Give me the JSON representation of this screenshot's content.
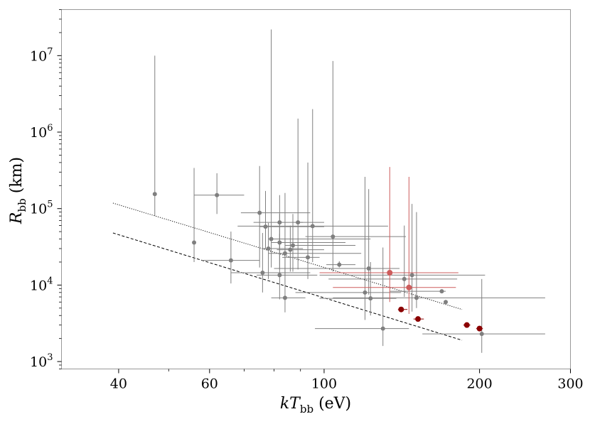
{
  "chart_data": {
    "type": "scatter",
    "title": "",
    "xlabel": {
      "main": "kT",
      "sub": "bb",
      "unit": " (eV)"
    },
    "ylabel": {
      "main": "R",
      "sub": "bb",
      "unit": " (km)"
    },
    "xscale": "log",
    "yscale": "log",
    "xlim": [
      31,
      300
    ],
    "ylim": [
      800,
      40000000
    ],
    "x_ticks": [
      {
        "value": 40,
        "label": "40"
      },
      {
        "value": 60,
        "label": "60"
      },
      {
        "value": 100,
        "label": "100"
      },
      {
        "value": 200,
        "label": "200"
      },
      {
        "value": 300,
        "label": "300"
      }
    ],
    "y_ticks": [
      {
        "value": 1000,
        "base": "10",
        "exp": "3"
      },
      {
        "value": 10000,
        "base": "10",
        "exp": "4"
      },
      {
        "value": 100000,
        "base": "10",
        "exp": "5"
      },
      {
        "value": 1000000,
        "base": "10",
        "exp": "6"
      },
      {
        "value": 10000000,
        "base": "10",
        "exp": "7"
      }
    ],
    "colors": {
      "gray": "#7f7f7f",
      "lightred": "#cd5c5c",
      "darkred": "#8b0000",
      "frame": "#999999",
      "line": "#000000"
    },
    "series": [
      {
        "name": "gray",
        "color": "#7f7f7f",
        "size": 3,
        "points": [
          {
            "x": 47,
            "y": 155000,
            "xlo": 47,
            "xhi": 47,
            "ylo": 80000,
            "yhi": 10000000
          },
          {
            "x": 62,
            "y": 150000,
            "xlo": 56,
            "xhi": 70,
            "ylo": 85000,
            "yhi": 290000
          },
          {
            "x": 56,
            "y": 36000,
            "xlo": 56,
            "xhi": 56,
            "ylo": 20000,
            "yhi": 340000
          },
          {
            "x": 66,
            "y": 21000,
            "xlo": 58,
            "xhi": 75,
            "ylo": 10500,
            "yhi": 50000
          },
          {
            "x": 75,
            "y": 88000,
            "xlo": 69,
            "xhi": 94,
            "ylo": 17000,
            "yhi": 360000
          },
          {
            "x": 77,
            "y": 58000,
            "xlo": 75,
            "xhi": 100,
            "ylo": 30000,
            "yhi": 170000
          },
          {
            "x": 79,
            "y": 40000,
            "xlo": 78,
            "xhi": 123,
            "ylo": 17000,
            "yhi": 22000000
          },
          {
            "x": 78,
            "y": 30000,
            "xlo": 76,
            "xhi": 91,
            "ylo": 12000,
            "yhi": 65000
          },
          {
            "x": 82,
            "y": 66000,
            "xlo": 73,
            "xhi": 100,
            "ylo": 30000,
            "yhi": 150000
          },
          {
            "x": 82,
            "y": 36000,
            "xlo": 79,
            "xhi": 110,
            "ylo": 16000,
            "yhi": 85000
          },
          {
            "x": 84,
            "y": 26000,
            "xlo": 78,
            "xhi": 118,
            "ylo": 13000,
            "yhi": 160000
          },
          {
            "x": 86,
            "y": 29000,
            "xlo": 81,
            "xhi": 100,
            "ylo": 15000,
            "yhi": 60000
          },
          {
            "x": 87,
            "y": 33000,
            "xlo": 84,
            "xhi": 115,
            "ylo": 15000,
            "yhi": 85000
          },
          {
            "x": 89,
            "y": 66000,
            "xlo": 88,
            "xhi": 91,
            "ylo": 16000,
            "yhi": 1500000
          },
          {
            "x": 93,
            "y": 23000,
            "xlo": 83,
            "xhi": 98,
            "ylo": 12000,
            "yhi": 400000
          },
          {
            "x": 95,
            "y": 59000,
            "xlo": 68,
            "xhi": 133,
            "ylo": 20000,
            "yhi": 2000000
          },
          {
            "x": 104,
            "y": 43000,
            "xlo": 92,
            "xhi": 144,
            "ylo": 15000,
            "yhi": 8500000
          },
          {
            "x": 107,
            "y": 18500,
            "xlo": 101,
            "xhi": 115,
            "ylo": 17000,
            "yhi": 20500
          },
          {
            "x": 76,
            "y": 14500,
            "xlo": 66,
            "xhi": 94,
            "ylo": 8000,
            "yhi": 48000
          },
          {
            "x": 82,
            "y": 13500,
            "xlo": 74,
            "xhi": 97,
            "ylo": 6500,
            "yhi": 47000
          },
          {
            "x": 84,
            "y": 6800,
            "xlo": 79,
            "xhi": 92,
            "ylo": 4400,
            "yhi": 40000
          },
          {
            "x": 120,
            "y": 8000,
            "xlo": 88,
            "xhi": 141,
            "ylo": 3500,
            "yhi": 260000
          },
          {
            "x": 122,
            "y": 16500,
            "xlo": 80,
            "xhi": 140,
            "ylo": 7500,
            "yhi": 180000
          },
          {
            "x": 123,
            "y": 6700,
            "xlo": 98,
            "xhi": 138,
            "ylo": 4000,
            "yhi": 20000
          },
          {
            "x": 130,
            "y": 2700,
            "xlo": 96,
            "xhi": 146,
            "ylo": 1600,
            "yhi": 31000
          },
          {
            "x": 143,
            "y": 12000,
            "xlo": 102,
            "xhi": 181,
            "ylo": 7000,
            "yhi": 60000
          },
          {
            "x": 148,
            "y": 13500,
            "xlo": 98,
            "xhi": 205,
            "ylo": 4500,
            "yhi": 115000
          },
          {
            "x": 151,
            "y": 6800,
            "xlo": 104,
            "xhi": 268,
            "ylo": 5000,
            "yhi": 90000
          },
          {
            "x": 169,
            "y": 8300,
            "xlo": 134,
            "xhi": 172,
            "ylo": 8000,
            "yhi": 8700
          },
          {
            "x": 172,
            "y": 6000,
            "xlo": 172,
            "xhi": 172,
            "ylo": 5600,
            "yhi": 6400
          },
          {
            "x": 202,
            "y": 2300,
            "xlo": 155,
            "xhi": 268,
            "ylo": 1300,
            "yhi": 12000
          }
        ]
      },
      {
        "name": "lightred",
        "color": "#cd5c5c",
        "size": 4,
        "points": [
          {
            "x": 134,
            "y": 14500,
            "xlo": 98,
            "xhi": 182,
            "ylo": 6000,
            "yhi": 350000
          },
          {
            "x": 146,
            "y": 9300,
            "xlo": 104,
            "xhi": 180,
            "ylo": 4200,
            "yhi": 260000
          }
        ]
      },
      {
        "name": "darkred",
        "color": "#8b0000",
        "size": 4,
        "points": [
          {
            "x": 141,
            "y": 4800,
            "xlo": 139,
            "xhi": 145,
            "ylo": 4600,
            "yhi": 5000
          },
          {
            "x": 152,
            "y": 3600,
            "xlo": 149,
            "xhi": 156,
            "ylo": 3400,
            "yhi": 3800
          },
          {
            "x": 189,
            "y": 3000,
            "xlo": 186,
            "xhi": 192,
            "ylo": 2850,
            "yhi": 3150
          },
          {
            "x": 200,
            "y": 2700,
            "xlo": 197,
            "xhi": 203,
            "ylo": 2550,
            "yhi": 2850
          }
        ]
      }
    ],
    "lines": [
      {
        "name": "dotted-fit",
        "style": "dotted",
        "x": [
          39,
          185
        ],
        "y": [
          118000,
          4800
        ]
      },
      {
        "name": "dashed-fit",
        "style": "dashed",
        "x": [
          39,
          185
        ],
        "y": [
          48000,
          1900
        ]
      }
    ]
  }
}
